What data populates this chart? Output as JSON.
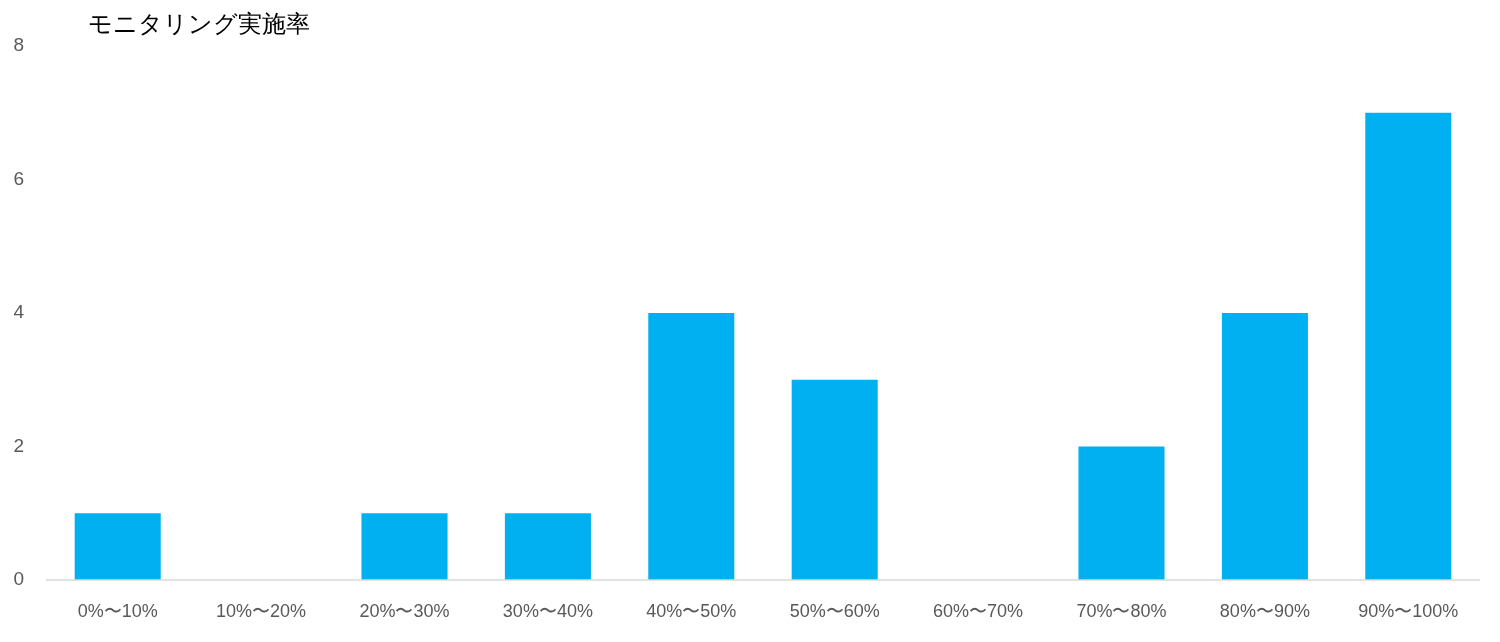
{
  "chart_data": {
    "type": "bar",
    "title": "モニタリング実施率",
    "categories": [
      "0%〜10%",
      "10%〜20%",
      "20%〜30%",
      "30%〜40%",
      "40%〜50%",
      "50%〜60%",
      "60%〜70%",
      "70%〜80%",
      "80%〜90%",
      "90%〜100%"
    ],
    "values": [
      1,
      0,
      1,
      1,
      4,
      3,
      0,
      2,
      4,
      7
    ],
    "color": "#00b0f0",
    "ylim": [
      0,
      8
    ],
    "yticks": [
      0,
      2,
      4,
      6,
      8
    ]
  }
}
